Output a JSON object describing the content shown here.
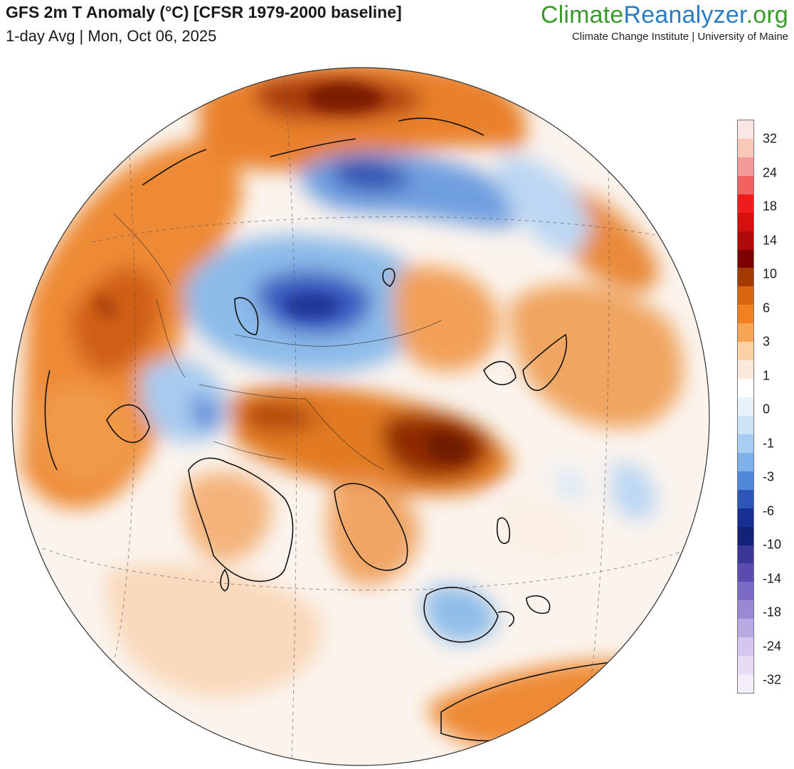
{
  "header": {
    "title": "GFS 2m T Anomaly (°C) [CFSR 1979-2000 baseline]",
    "subtitle": "1-day Avg | Mon, Oct 06, 2025"
  },
  "brand": {
    "logo_part1": "Climate",
    "logo_part2": "Reanalyzer",
    "logo_part3": ".org",
    "tagline": "Climate Change Institute | University of Maine"
  },
  "colorbar": {
    "labels": [
      "32",
      "24",
      "18",
      "14",
      "10",
      "6",
      "3",
      "1",
      "0",
      "-1",
      "-3",
      "-6",
      "-10",
      "-14",
      "-18",
      "-24",
      "-32"
    ],
    "colors": [
      "#fbe6e6",
      "#f8c8b8",
      "#f59a9a",
      "#f26262",
      "#f01c1c",
      "#d60f0f",
      "#b00a0a",
      "#7f0000",
      "#a33a00",
      "#d9650f",
      "#f08020",
      "#f7a455",
      "#fad2a4",
      "#fbeadb",
      "#ffffff",
      "#e8f2fb",
      "#cfe3f7",
      "#a9cdf2",
      "#7fb1ea",
      "#4f88d9",
      "#2e55b8",
      "#182f93",
      "#132178",
      "#3b3796",
      "#5a4cae",
      "#7b6bc7",
      "#9a8ad6",
      "#b9a9e3",
      "#d4c6ee",
      "#e8dcf5",
      "#f4edfa"
    ]
  },
  "map": {
    "projection": "orthographic",
    "center": "Asia",
    "palette": {
      "ocean_neutral": "#fbf6f1",
      "warm_light": "#f9d2ad",
      "warm": "#ef8a33",
      "warm_strong": "#c85612",
      "hot": "#8c2405",
      "cool_light": "#d8e8f8",
      "cool": "#8fbde9",
      "cold": "#4d7fd4",
      "cold_strong": "#2a44a8"
    }
  }
}
